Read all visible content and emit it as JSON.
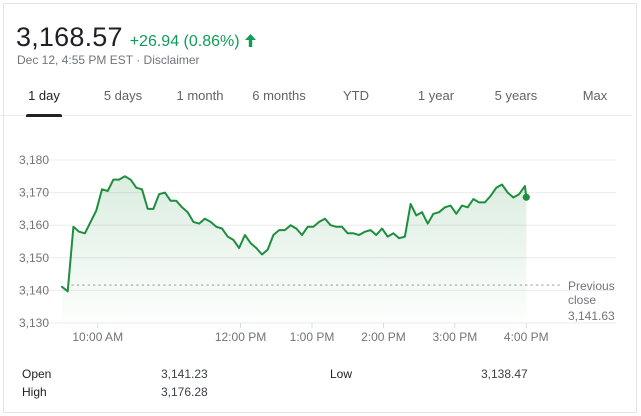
{
  "header": {
    "price": "3,168.57",
    "change": "+26.94 (0.86%)",
    "timestamp": "Dec 12, 4:55 PM EST",
    "separator": "·",
    "disclaimer": "Disclaimer",
    "accent_color": "#0f9d58"
  },
  "tabs": [
    {
      "label": "1 day",
      "active": true
    },
    {
      "label": "5 days"
    },
    {
      "label": "1 month"
    },
    {
      "label": "6 months"
    },
    {
      "label": "YTD"
    },
    {
      "label": "1 year"
    },
    {
      "label": "5 years"
    },
    {
      "label": "Max"
    }
  ],
  "chart_data": {
    "type": "line",
    "ylim": [
      3130,
      3180
    ],
    "yticks": [
      "3,130",
      "3,140",
      "3,150",
      "3,160",
      "3,170",
      "3,180"
    ],
    "xlim": [
      9.5,
      16.5
    ],
    "xticks": [
      {
        "label": "10:00 AM",
        "hour": 10
      },
      {
        "label": "12:00 PM",
        "hour": 12
      },
      {
        "label": "1:00 PM",
        "hour": 13
      },
      {
        "label": "2:00 PM",
        "hour": 14
      },
      {
        "label": "3:00 PM",
        "hour": 15
      },
      {
        "label": "4:00 PM",
        "hour": 16
      }
    ],
    "grid": true,
    "line_color": "#1e8e3e",
    "fill": "area gradient",
    "previous_close": {
      "value": 3141.63,
      "label_line1": "Previous",
      "label_line2": "close",
      "label_value": "3,141.63"
    },
    "series": [
      {
        "x": [
          9.5,
          9.58,
          9.66,
          9.74,
          9.82,
          9.9,
          9.98,
          10.06,
          10.14,
          10.22,
          10.3,
          10.38,
          10.46,
          10.54,
          10.62,
          10.7,
          10.78,
          10.86,
          10.94,
          11.02,
          11.1,
          11.18,
          11.26,
          11.34,
          11.42,
          11.5,
          11.58,
          11.66,
          11.74,
          11.82,
          11.9,
          11.98,
          12.06,
          12.14,
          12.22,
          12.3,
          12.38,
          12.46,
          12.54,
          12.62,
          12.7,
          12.78,
          12.86,
          12.94,
          13.02,
          13.1,
          13.18,
          13.26,
          13.34,
          13.42,
          13.5,
          13.58,
          13.66,
          13.74,
          13.82,
          13.9,
          13.98,
          14.06,
          14.14,
          14.22,
          14.3,
          14.38,
          14.46,
          14.54,
          14.62,
          14.7,
          14.78,
          14.86,
          14.94,
          15.02,
          15.1,
          15.18,
          15.26,
          15.34,
          15.42,
          15.5,
          15.58,
          15.66,
          15.74,
          15.82,
          15.9,
          15.98,
          16.0
        ],
        "y": [
          3141.1,
          3139.7,
          3159.5,
          3158.0,
          3157.5,
          3161.0,
          3164.5,
          3171.0,
          3170.5,
          3174.0,
          3174.0,
          3175.0,
          3174.0,
          3171.5,
          3171.0,
          3165.0,
          3165.0,
          3169.5,
          3170.0,
          3167.5,
          3167.5,
          3165.5,
          3164.0,
          3161.0,
          3160.5,
          3162.0,
          3161.0,
          3159.5,
          3159.0,
          3156.5,
          3155.5,
          3153.0,
          3157.0,
          3154.5,
          3153.0,
          3151.0,
          3152.5,
          3157.0,
          3158.5,
          3158.5,
          3160.0,
          3159.0,
          3157.0,
          3159.5,
          3159.5,
          3161.0,
          3162.0,
          3160.0,
          3159.5,
          3159.5,
          3157.5,
          3157.5,
          3157.0,
          3158.0,
          3158.5,
          3157.0,
          3159.0,
          3156.5,
          3157.5,
          3156.0,
          3156.5,
          3166.5,
          3163.0,
          3164.0,
          3160.5,
          3163.5,
          3164.0,
          3165.5,
          3166.0,
          3163.5,
          3166.0,
          3165.5,
          3168.0,
          3167.0,
          3167.0,
          3169.0,
          3171.5,
          3172.5,
          3170.0,
          3168.5,
          3169.5,
          3172.0,
          3168.57
        ]
      }
    ]
  },
  "stats": [
    {
      "label": "Open",
      "value": "3,141.23"
    },
    {
      "label": "High",
      "value": "3,176.28"
    },
    {
      "label": "Low",
      "value": "3,138.47"
    }
  ]
}
